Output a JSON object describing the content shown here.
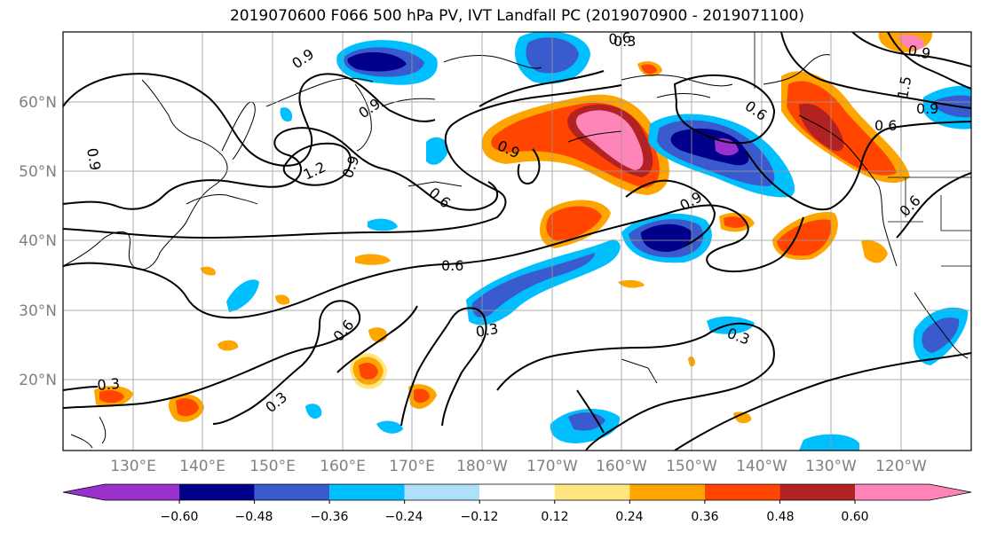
{
  "title": "2019070600 F066 500 hPa PV, IVT Landfall PC (2019070900 - 2019071100)",
  "lat_labels": [
    "60°N",
    "50°N",
    "40°N",
    "30°N",
    "20°N"
  ],
  "lon_labels": [
    "130°E",
    "140°E",
    "150°E",
    "160°E",
    "170°E",
    "180°W",
    "170°W",
    "160°W",
    "150°W",
    "140°W",
    "130°W",
    "120°W"
  ],
  "contour_labels": [
    "0.9",
    "0.9",
    "0.9",
    "1.2",
    "0.9",
    "0.6",
    "0.6",
    "0.9",
    "0.9",
    "0.6",
    "0.6",
    "0.3",
    "0.6",
    "0.3",
    "0.3",
    "0.3",
    "0.9",
    "1.5",
    "0.9",
    "0.6",
    "0.6",
    "0.3"
  ],
  "colorbar": {
    "ticks": [
      "−0.60",
      "−0.48",
      "−0.36",
      "−0.24",
      "−0.12",
      "0.12",
      "0.24",
      "0.36",
      "0.48",
      "0.60"
    ],
    "colors": [
      "#9932cc",
      "#00008b",
      "#3a5bcd",
      "#00bfff",
      "#aee0fa",
      "#ffffff",
      "#ffe680",
      "#ffa500",
      "#ff4500",
      "#b22222",
      "#ff85b8"
    ]
  }
}
